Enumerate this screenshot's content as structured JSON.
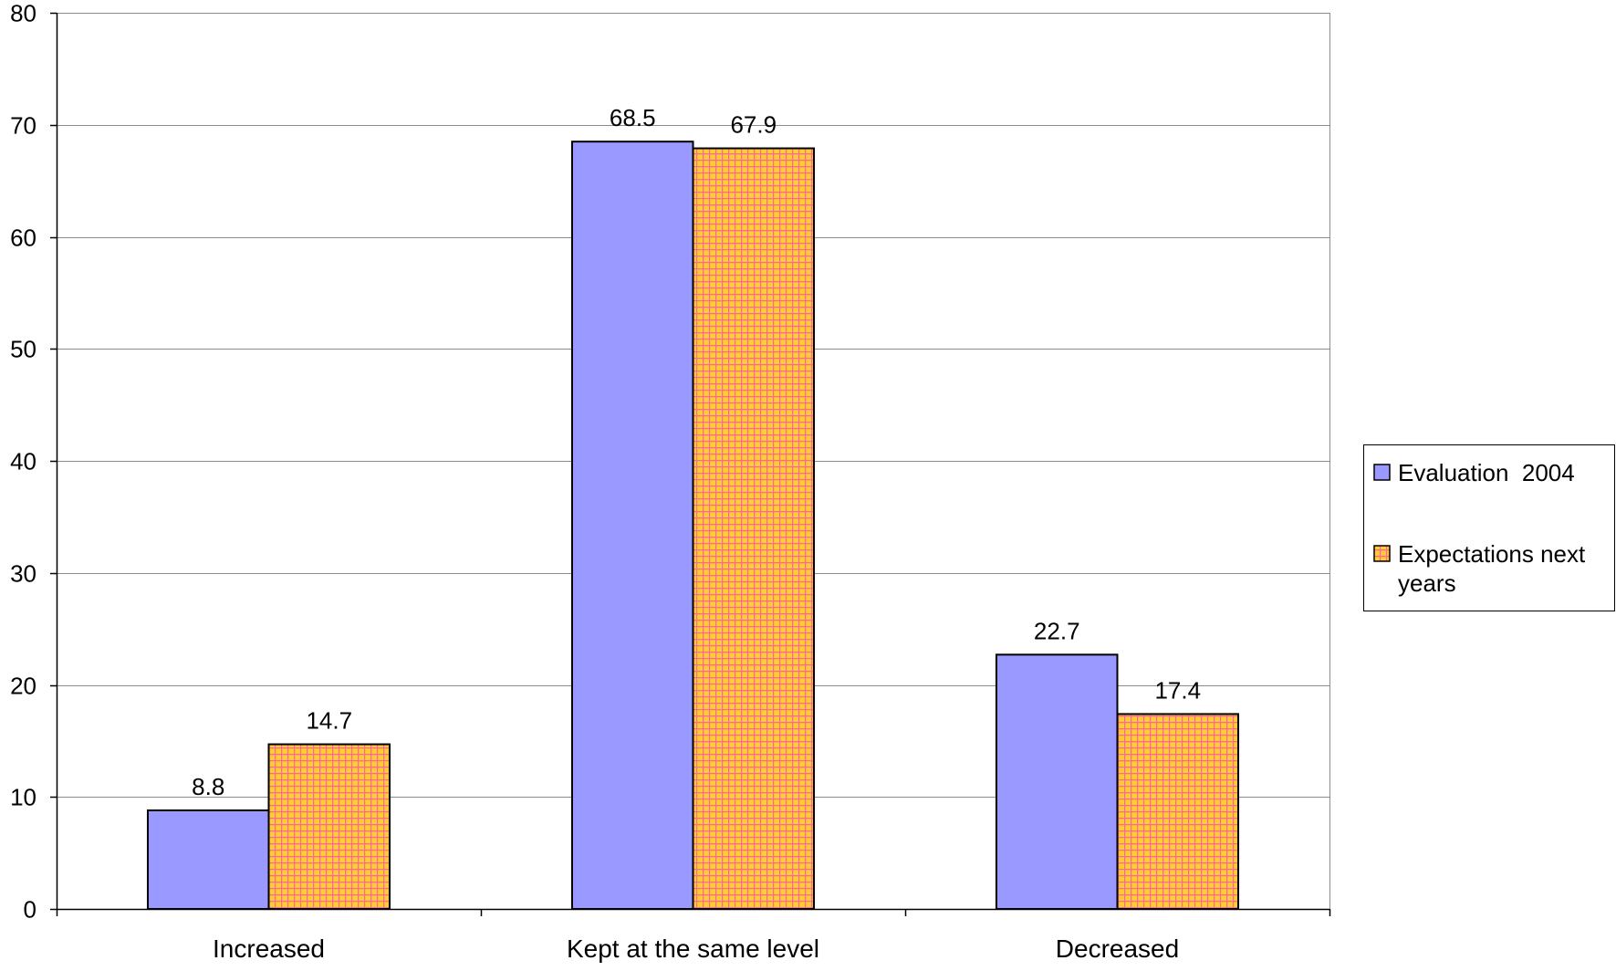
{
  "chart_data": {
    "type": "bar",
    "categories": [
      "Increased",
      "Kept at the same level",
      "Decreased"
    ],
    "series": [
      {
        "name": "Evaluation  2004",
        "values": [
          8.8,
          68.5,
          22.7
        ],
        "color": "#9999ff",
        "pattern": "solid"
      },
      {
        "name": "Expectations next years",
        "values": [
          14.7,
          67.9,
          17.4
        ],
        "color": "#ffcc33",
        "pattern": "grid",
        "pattern_line_color": "#ff6699"
      }
    ],
    "value_labels": [
      [
        "8.8",
        "68.5",
        "22.7"
      ],
      [
        "14.7",
        "67.9",
        "17.4"
      ]
    ],
    "y_ticks": [
      "0",
      "10",
      "20",
      "30",
      "40",
      "50",
      "60",
      "70",
      "80"
    ],
    "ylim": [
      0,
      80
    ],
    "y_step": 10,
    "grid": true,
    "legend": {
      "placement": "right",
      "entries": [
        {
          "line1": "Evaluation  2004",
          "line2": ""
        },
        {
          "line1": "Expectations next",
          "line2": "years"
        }
      ]
    },
    "title": "",
    "xlabel": "",
    "ylabel": ""
  }
}
